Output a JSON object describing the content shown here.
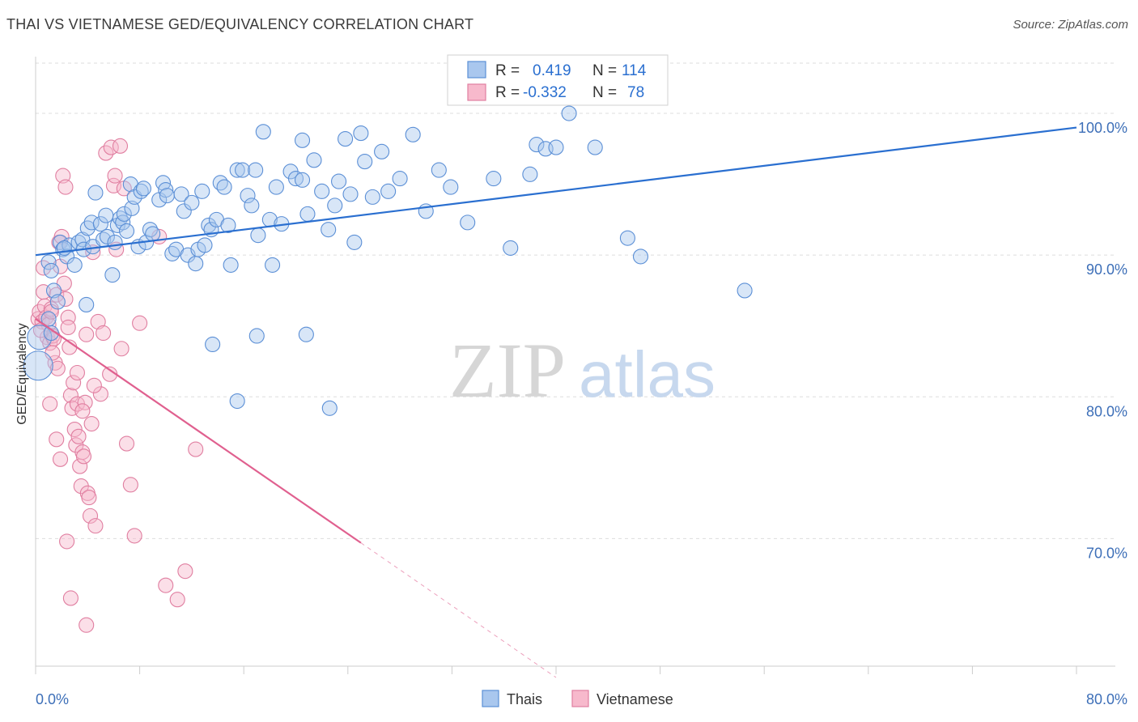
{
  "title": "THAI VS VIETNAMESE GED/EQUIVALENCY CORRELATION CHART",
  "source": "Source: ZipAtlas.com",
  "watermark": {
    "zip": "ZIP",
    "atlas": "atlas"
  },
  "legend": {
    "rows": [
      {
        "r_label": "R =",
        "r_value": "0.419",
        "n_label": "N =",
        "n_value": "114"
      },
      {
        "r_label": "R =",
        "r_value": "-0.332",
        "n_label": "N =",
        "n_value": "78"
      }
    ]
  },
  "colors": {
    "thai_fill": "#a9c7ee",
    "thai_stroke": "#5b8fd6",
    "thai_line": "#2a6fd0",
    "viet_fill": "#f7b9cc",
    "viet_stroke": "#e07ea0",
    "viet_line": "#e0608f",
    "tick_text": "#3d6fb8",
    "grid": "#dddddd"
  },
  "chart_data": {
    "type": "scatter",
    "title": "THAI VS VIETNAMESE GED/EQUIVALENCY CORRELATION CHART",
    "xlabel": "",
    "ylabel": "GED/Equivalency",
    "xlim": [
      0,
      80
    ],
    "ylim": [
      61,
      104
    ],
    "x_tick_labels": [
      "0.0%",
      "80.0%"
    ],
    "y_ticks": [
      70,
      80,
      90,
      100
    ],
    "y_tick_labels": [
      "70.0%",
      "80.0%",
      "90.0%",
      "100.0%"
    ],
    "grid": true,
    "legend_position": "bottom",
    "series": [
      {
        "name": "Thais",
        "r": 0.419,
        "n": 114,
        "trend": {
          "x": [
            0,
            80
          ],
          "y": [
            90.0,
            99.0
          ],
          "style": "solid"
        },
        "points": [
          [
            0.2,
            82.2
          ],
          [
            0.3,
            84.2
          ],
          [
            1.0,
            85.5
          ],
          [
            1.2,
            84.5
          ],
          [
            1.0,
            89.5
          ],
          [
            1.4,
            87.5
          ],
          [
            1.2,
            88.9
          ],
          [
            1.7,
            86.7
          ],
          [
            1.9,
            90.9
          ],
          [
            2.1,
            90.4
          ],
          [
            2.6,
            90.7
          ],
          [
            2.4,
            89.9
          ],
          [
            3.0,
            89.3
          ],
          [
            3.3,
            90.9
          ],
          [
            3.6,
            91.1
          ],
          [
            3.7,
            90.4
          ],
          [
            4.0,
            91.9
          ],
          [
            4.3,
            92.3
          ],
          [
            4.4,
            90.6
          ],
          [
            4.6,
            94.4
          ],
          [
            5.0,
            92.2
          ],
          [
            5.2,
            91.1
          ],
          [
            5.4,
            92.8
          ],
          [
            5.5,
            91.3
          ],
          [
            5.9,
            88.6
          ],
          [
            6.1,
            90.9
          ],
          [
            6.3,
            92.1
          ],
          [
            6.5,
            92.6
          ],
          [
            6.7,
            92.3
          ],
          [
            6.8,
            92.9
          ],
          [
            7.0,
            91.7
          ],
          [
            7.3,
            95.0
          ],
          [
            7.4,
            93.3
          ],
          [
            7.6,
            94.1
          ],
          [
            7.9,
            90.6
          ],
          [
            8.1,
            94.5
          ],
          [
            8.3,
            94.7
          ],
          [
            8.5,
            90.9
          ],
          [
            8.8,
            91.8
          ],
          [
            9.0,
            91.5
          ],
          [
            9.5,
            93.9
          ],
          [
            9.8,
            95.1
          ],
          [
            10.0,
            94.6
          ],
          [
            10.1,
            94.2
          ],
          [
            10.5,
            90.1
          ],
          [
            10.8,
            90.4
          ],
          [
            11.2,
            94.3
          ],
          [
            11.4,
            93.1
          ],
          [
            11.7,
            90.0
          ],
          [
            12.0,
            93.7
          ],
          [
            12.3,
            89.4
          ],
          [
            12.5,
            90.4
          ],
          [
            12.8,
            94.5
          ],
          [
            13.0,
            90.7
          ],
          [
            13.3,
            92.1
          ],
          [
            13.5,
            91.8
          ],
          [
            13.9,
            92.5
          ],
          [
            14.2,
            95.1
          ],
          [
            14.5,
            94.8
          ],
          [
            14.8,
            92.1
          ],
          [
            15.0,
            89.3
          ],
          [
            15.5,
            96.0
          ],
          [
            15.9,
            96.0
          ],
          [
            16.3,
            94.2
          ],
          [
            16.6,
            93.5
          ],
          [
            16.9,
            96.0
          ],
          [
            17.1,
            91.4
          ],
          [
            17.5,
            98.7
          ],
          [
            18.0,
            92.5
          ],
          [
            18.2,
            89.3
          ],
          [
            18.5,
            94.8
          ],
          [
            18.9,
            92.2
          ],
          [
            19.6,
            95.9
          ],
          [
            20.0,
            95.4
          ],
          [
            20.5,
            95.3
          ],
          [
            20.9,
            92.9
          ],
          [
            21.4,
            96.7
          ],
          [
            22.0,
            94.5
          ],
          [
            22.5,
            91.8
          ],
          [
            23.0,
            93.5
          ],
          [
            23.3,
            95.2
          ],
          [
            23.8,
            98.2
          ],
          [
            24.2,
            94.3
          ],
          [
            24.5,
            90.9
          ],
          [
            25.3,
            96.6
          ],
          [
            25.9,
            94.1
          ],
          [
            26.6,
            97.3
          ],
          [
            27.1,
            94.5
          ],
          [
            28.0,
            95.4
          ],
          [
            29.0,
            98.5
          ],
          [
            30.0,
            93.1
          ],
          [
            31.0,
            96.0
          ],
          [
            31.9,
            94.8
          ],
          [
            33.2,
            92.3
          ],
          [
            35.2,
            95.4
          ],
          [
            36.5,
            90.5
          ],
          [
            38.0,
            95.7
          ],
          [
            38.5,
            97.8
          ],
          [
            39.2,
            97.5
          ],
          [
            40.0,
            97.6
          ],
          [
            41.0,
            100.0
          ],
          [
            43.0,
            97.6
          ],
          [
            45.5,
            91.2
          ],
          [
            46.5,
            89.9
          ],
          [
            54.5,
            87.5
          ],
          [
            17.0,
            84.3
          ],
          [
            15.5,
            79.7
          ],
          [
            22.6,
            79.2
          ],
          [
            13.6,
            83.7
          ],
          [
            20.8,
            84.4
          ],
          [
            20.5,
            98.1
          ],
          [
            25.0,
            98.6
          ],
          [
            2.2,
            90.5
          ],
          [
            3.9,
            86.5
          ]
        ]
      },
      {
        "name": "Vietnamese",
        "r": -0.332,
        "n": 78,
        "trend": {
          "x": [
            0,
            25
          ],
          "y": [
            85.5,
            69.7
          ],
          "style": "solid",
          "dashed_extension": {
            "x": [
              25,
              40
            ],
            "y": [
              69.7,
              60.2
            ]
          }
        },
        "points": [
          [
            0.2,
            85.5
          ],
          [
            0.3,
            86.0
          ],
          [
            0.5,
            85.3
          ],
          [
            0.6,
            87.4
          ],
          [
            0.7,
            86.4
          ],
          [
            0.8,
            85.6
          ],
          [
            0.9,
            84.2
          ],
          [
            1.0,
            85.1
          ],
          [
            1.1,
            83.8
          ],
          [
            1.2,
            86.2
          ],
          [
            1.3,
            84.3
          ],
          [
            1.4,
            84.1
          ],
          [
            1.5,
            82.4
          ],
          [
            1.6,
            87.2
          ],
          [
            1.8,
            90.9
          ],
          [
            1.9,
            89.2
          ],
          [
            2.0,
            91.3
          ],
          [
            2.2,
            88.0
          ],
          [
            2.3,
            86.9
          ],
          [
            2.5,
            85.6
          ],
          [
            2.6,
            83.5
          ],
          [
            2.7,
            80.1
          ],
          [
            2.8,
            79.2
          ],
          [
            3.0,
            77.7
          ],
          [
            3.1,
            76.6
          ],
          [
            3.2,
            79.5
          ],
          [
            3.3,
            77.2
          ],
          [
            3.4,
            75.1
          ],
          [
            3.5,
            73.7
          ],
          [
            3.6,
            76.1
          ],
          [
            3.7,
            75.8
          ],
          [
            3.8,
            79.6
          ],
          [
            3.9,
            84.4
          ],
          [
            4.0,
            73.2
          ],
          [
            4.1,
            72.9
          ],
          [
            4.2,
            71.6
          ],
          [
            4.4,
            90.2
          ],
          [
            4.6,
            70.9
          ],
          [
            4.8,
            85.3
          ],
          [
            5.2,
            84.5
          ],
          [
            5.4,
            97.2
          ],
          [
            5.8,
            97.6
          ],
          [
            6.0,
            94.9
          ],
          [
            6.2,
            90.4
          ],
          [
            6.5,
            97.7
          ],
          [
            7.0,
            76.7
          ],
          [
            7.3,
            73.8
          ],
          [
            7.6,
            70.2
          ],
          [
            8.0,
            85.2
          ],
          [
            10.0,
            66.7
          ],
          [
            10.9,
            65.7
          ],
          [
            11.5,
            67.7
          ],
          [
            12.3,
            76.3
          ],
          [
            1.1,
            79.5
          ],
          [
            1.6,
            77.0
          ],
          [
            1.9,
            75.6
          ],
          [
            2.4,
            69.8
          ],
          [
            2.7,
            65.8
          ],
          [
            3.9,
            63.9
          ],
          [
            4.3,
            78.1
          ],
          [
            5.0,
            80.2
          ],
          [
            6.1,
            95.6
          ],
          [
            6.8,
            94.7
          ],
          [
            9.5,
            91.3
          ],
          [
            2.1,
            95.6
          ],
          [
            2.3,
            94.8
          ],
          [
            0.6,
            89.1
          ],
          [
            1.2,
            86.0
          ],
          [
            1.7,
            82.0
          ],
          [
            2.9,
            81.0
          ],
          [
            3.6,
            79.0
          ],
          [
            4.5,
            80.8
          ],
          [
            5.7,
            81.6
          ],
          [
            6.6,
            83.4
          ],
          [
            0.4,
            84.7
          ],
          [
            1.3,
            83.1
          ],
          [
            2.5,
            84.9
          ],
          [
            3.2,
            81.7
          ]
        ]
      }
    ]
  },
  "bottom_legend": {
    "thai_label": "Thais",
    "viet_label": "Vietnamese"
  }
}
